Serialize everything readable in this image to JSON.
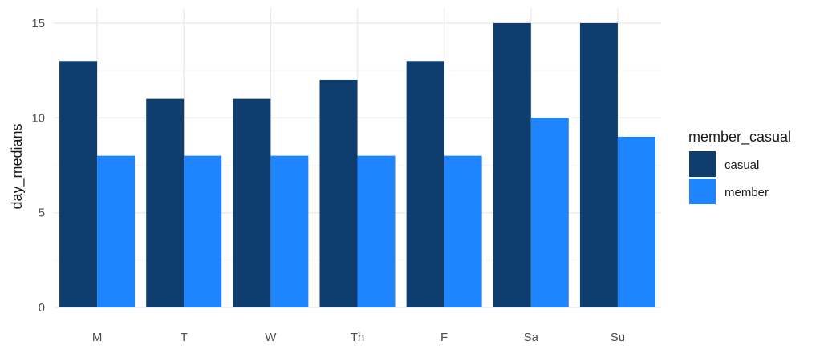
{
  "chart_data": {
    "type": "bar",
    "categories": [
      "M",
      "T",
      "W",
      "Th",
      "F",
      "Sa",
      "Su"
    ],
    "series": [
      {
        "name": "casual",
        "color": "#0f3d6e",
        "values": [
          13,
          11,
          11,
          12,
          13,
          15,
          15
        ]
      },
      {
        "name": "member",
        "color": "#1f85ff",
        "values": [
          8,
          8,
          8,
          8,
          8,
          10,
          9
        ]
      }
    ],
    "xlabel": "",
    "ylabel": "day_medians",
    "ylim": [
      0,
      15.8
    ],
    "yticks": [
      0,
      5,
      10,
      15
    ],
    "grid": true,
    "legend": {
      "title": "member_casual",
      "position": "right"
    }
  }
}
